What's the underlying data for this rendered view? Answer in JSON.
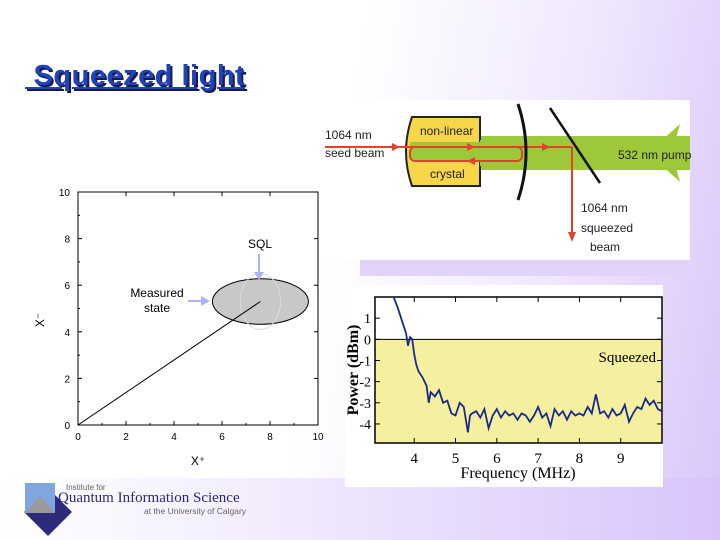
{
  "title": " Squeezed light",
  "diagram": {
    "seed_label": [
      "1064 nm",
      "seed beam"
    ],
    "crystal_label": [
      "non-linear",
      "crystal"
    ],
    "pump_label": "532 nm pump",
    "squeezed_label": [
      "1064 nm",
      "squeezed",
      "beam"
    ],
    "colors": {
      "beam": "#e0452c",
      "pump": "#99c83a",
      "crystal": "#f7d64a"
    }
  },
  "logo": {
    "line1": "Institute for",
    "line2": "Quantum Information Science",
    "line3": "at the University of Calgary"
  },
  "chart_data": [
    {
      "type": "scatter",
      "title": "",
      "xlabel": "X+",
      "ylabel": "X-",
      "xlim": [
        0,
        10
      ],
      "ylim": [
        0,
        10
      ],
      "xticks": [
        "0",
        "2",
        "4",
        "6",
        "8",
        "10"
      ],
      "yticks": [
        "0",
        "2",
        "4",
        "6",
        "8",
        "10"
      ],
      "ellipse": {
        "cx": 7.6,
        "cy": 5.3,
        "rx": 2.0,
        "ry": 0.85,
        "fill": "#c8c8c8"
      },
      "sql_circle": {
        "cx": 7.6,
        "cy": 5.3,
        "r": 1.2
      },
      "line": [
        [
          0,
          0
        ],
        [
          7.6,
          5.3
        ]
      ],
      "annotations": [
        {
          "text": "SQL"
        },
        {
          "text": [
            "Measured",
            "state"
          ]
        }
      ]
    },
    {
      "type": "line",
      "xlabel": "Frequency (MHz)",
      "ylabel": "Power (dBm)",
      "xlim": [
        3.05,
        10
      ],
      "ylim": [
        -4.9,
        2
      ],
      "xticks": [
        "4",
        "5",
        "6",
        "7",
        "8",
        "9"
      ],
      "yticks": [
        "1",
        "0",
        "-1",
        "-2",
        "-3",
        "-4"
      ],
      "region_label": "Squeezed",
      "region_color": "#f5f0a0",
      "x": [
        3.5,
        3.6,
        3.7,
        3.8,
        3.85,
        3.9,
        3.95,
        4.0,
        4.05,
        4.1,
        4.2,
        4.3,
        4.35,
        4.4,
        4.5,
        4.6,
        4.7,
        4.8,
        4.9,
        5.0,
        5.1,
        5.2,
        5.3,
        5.35,
        5.4,
        5.5,
        5.6,
        5.7,
        5.8,
        5.9,
        6.0,
        6.1,
        6.2,
        6.3,
        6.4,
        6.5,
        6.6,
        6.7,
        6.8,
        6.9,
        7.0,
        7.1,
        7.2,
        7.3,
        7.4,
        7.5,
        7.6,
        7.7,
        7.8,
        7.9,
        8.0,
        8.1,
        8.2,
        8.3,
        8.4,
        8.5,
        8.6,
        8.7,
        8.8,
        8.9,
        9.0,
        9.1,
        9.2,
        9.3,
        9.4,
        9.5,
        9.6,
        9.7,
        9.8,
        9.9,
        10.0
      ],
      "values": [
        2.0,
        1.5,
        0.9,
        0.3,
        -0.3,
        0.1,
        0,
        -0.7,
        -1.2,
        -1.5,
        -1.8,
        -2.2,
        -3.0,
        -2.5,
        -2.7,
        -2.4,
        -3.0,
        -2.9,
        -3.5,
        -3.6,
        -3.0,
        -3.2,
        -4.4,
        -3.6,
        -3.5,
        -3.4,
        -3.7,
        -3.3,
        -4.2,
        -3.6,
        -3.3,
        -3.7,
        -3.4,
        -3.6,
        -3.5,
        -3.8,
        -3.5,
        -3.6,
        -3.9,
        -3.6,
        -3.2,
        -3.7,
        -3.5,
        -4.1,
        -3.3,
        -3.6,
        -3.4,
        -3.8,
        -3.4,
        -3.6,
        -3.5,
        -3.6,
        -3.2,
        -3.5,
        -2.6,
        -3.5,
        -3.4,
        -3.7,
        -3.3,
        -3.6,
        -3.5,
        -3.1,
        -3.9,
        -3.5,
        -3.2,
        -3.3,
        -2.8,
        -3.1,
        -2.9,
        -3.3,
        -3.4
      ]
    }
  ]
}
